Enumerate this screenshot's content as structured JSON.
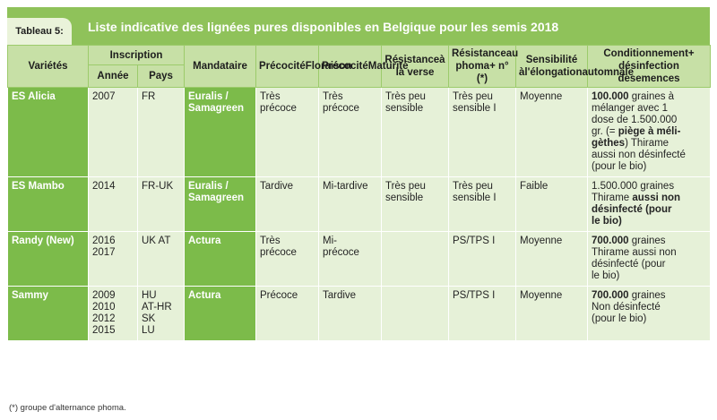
{
  "tag": "Tableau 5:",
  "title": "Liste indicative des lignées pures disponibles en Belgique pour les semis 2018",
  "headers": {
    "varietes": "Variétés",
    "inscription": "Inscription",
    "annee": "Année",
    "pays": "Pays",
    "mandataire": "Mandataire",
    "precocite_floraison": [
      "Précocité",
      "Floraison"
    ],
    "precocite_maturite": [
      "Précocité",
      "Maturité"
    ],
    "resistance_verse": [
      "Résistance",
      "à la verse"
    ],
    "resistance_phoma": [
      "Résistance",
      "au phoma",
      "+ n° (*)"
    ],
    "sensibilite": [
      "Sensibilité à",
      "l'élongation",
      "automnale"
    ],
    "conditionnement": [
      "Conditionnement",
      "+ désinfection de",
      "semences"
    ]
  },
  "rows": [
    {
      "variete": "ES Alicia",
      "annee": [
        "2007"
      ],
      "pays": [
        "FR"
      ],
      "mandataire": [
        "Euralis /",
        "Samagreen"
      ],
      "floraison": [
        "Très",
        "précoce"
      ],
      "maturite": [
        "Très",
        "précoce"
      ],
      "verse": [
        "Très peu",
        "sensible"
      ],
      "phoma": [
        "Très peu",
        "sensible I"
      ],
      "sensibilite": [
        "Moyenne"
      ],
      "conditionnement": [
        [
          {
            "t": "100.000",
            "b": true
          },
          {
            "t": " graines à"
          }
        ],
        [
          {
            "t": "mélanger avec 1"
          }
        ],
        [
          {
            "t": "dose de 1.500.000"
          }
        ],
        [
          {
            "t": "gr. (= "
          },
          {
            "t": "piège à méli-",
            "b": true
          }
        ],
        [
          {
            "t": "gèthes",
            "b": true
          },
          {
            "t": ") Thirame"
          }
        ],
        [
          {
            "t": "aussi non désinfecté"
          }
        ],
        [
          {
            "t": "(pour le bio)"
          }
        ]
      ]
    },
    {
      "variete": "ES Mambo",
      "annee": [
        "2014"
      ],
      "pays": [
        "FR-UK"
      ],
      "mandataire": [
        "Euralis /",
        "Samagreen"
      ],
      "floraison": [
        "Tardive"
      ],
      "maturite": [
        "Mi-tardive"
      ],
      "verse": [
        "Très peu",
        "sensible"
      ],
      "phoma": [
        "Très peu",
        "sensible I"
      ],
      "sensibilite": [
        "Faible"
      ],
      "conditionnement": [
        [
          {
            "t": "1.500.000 graines"
          }
        ],
        [
          {
            "t": "Thirame "
          },
          {
            "t": "aussi non",
            "b": true
          }
        ],
        [
          {
            "t": "désinfecté (pour",
            "b": true
          }
        ],
        [
          {
            "t": "le bio)",
            "b": true
          }
        ]
      ]
    },
    {
      "variete": "Randy (New)",
      "annee": [
        "2016",
        "2017"
      ],
      "pays": [
        "UK AT"
      ],
      "mandataire": [
        "Actura"
      ],
      "floraison": [
        "Très",
        "précoce"
      ],
      "maturite": [
        "Mi-",
        "précoce"
      ],
      "verse": [],
      "phoma": [
        "PS/TPS I"
      ],
      "sensibilite": [
        "Moyenne"
      ],
      "conditionnement": [
        [
          {
            "t": "700.000",
            "b": true
          },
          {
            "t": " graines"
          }
        ],
        [
          {
            "t": "Thirame aussi non"
          }
        ],
        [
          {
            "t": "désinfecté (pour"
          }
        ],
        [
          {
            "t": "le bio)"
          }
        ]
      ]
    },
    {
      "variete": "Sammy",
      "annee": [
        "2009",
        "2010",
        "2012",
        "2015"
      ],
      "pays": [
        "HU",
        "AT-HR",
        "SK",
        "LU"
      ],
      "mandataire": [
        "Actura"
      ],
      "floraison": [
        "Précoce"
      ],
      "maturite": [
        "Tardive"
      ],
      "verse": [],
      "phoma": [
        "PS/TPS I"
      ],
      "sensibilite": [
        "Moyenne"
      ],
      "conditionnement": [
        [
          {
            "t": "700.000",
            "b": true
          },
          {
            "t": " graines"
          }
        ],
        [
          {
            "t": "Non désinfecté"
          }
        ],
        [
          {
            "t": "(pour le bio)"
          }
        ]
      ]
    }
  ],
  "footnote": "(*) groupe d'alternance phoma.",
  "colors": {
    "title_bar": "#8fc25a",
    "header_bg": "#c7e0a6",
    "cell_bg": "#e6f1d8",
    "accent_cell": "#7cbb4a"
  }
}
